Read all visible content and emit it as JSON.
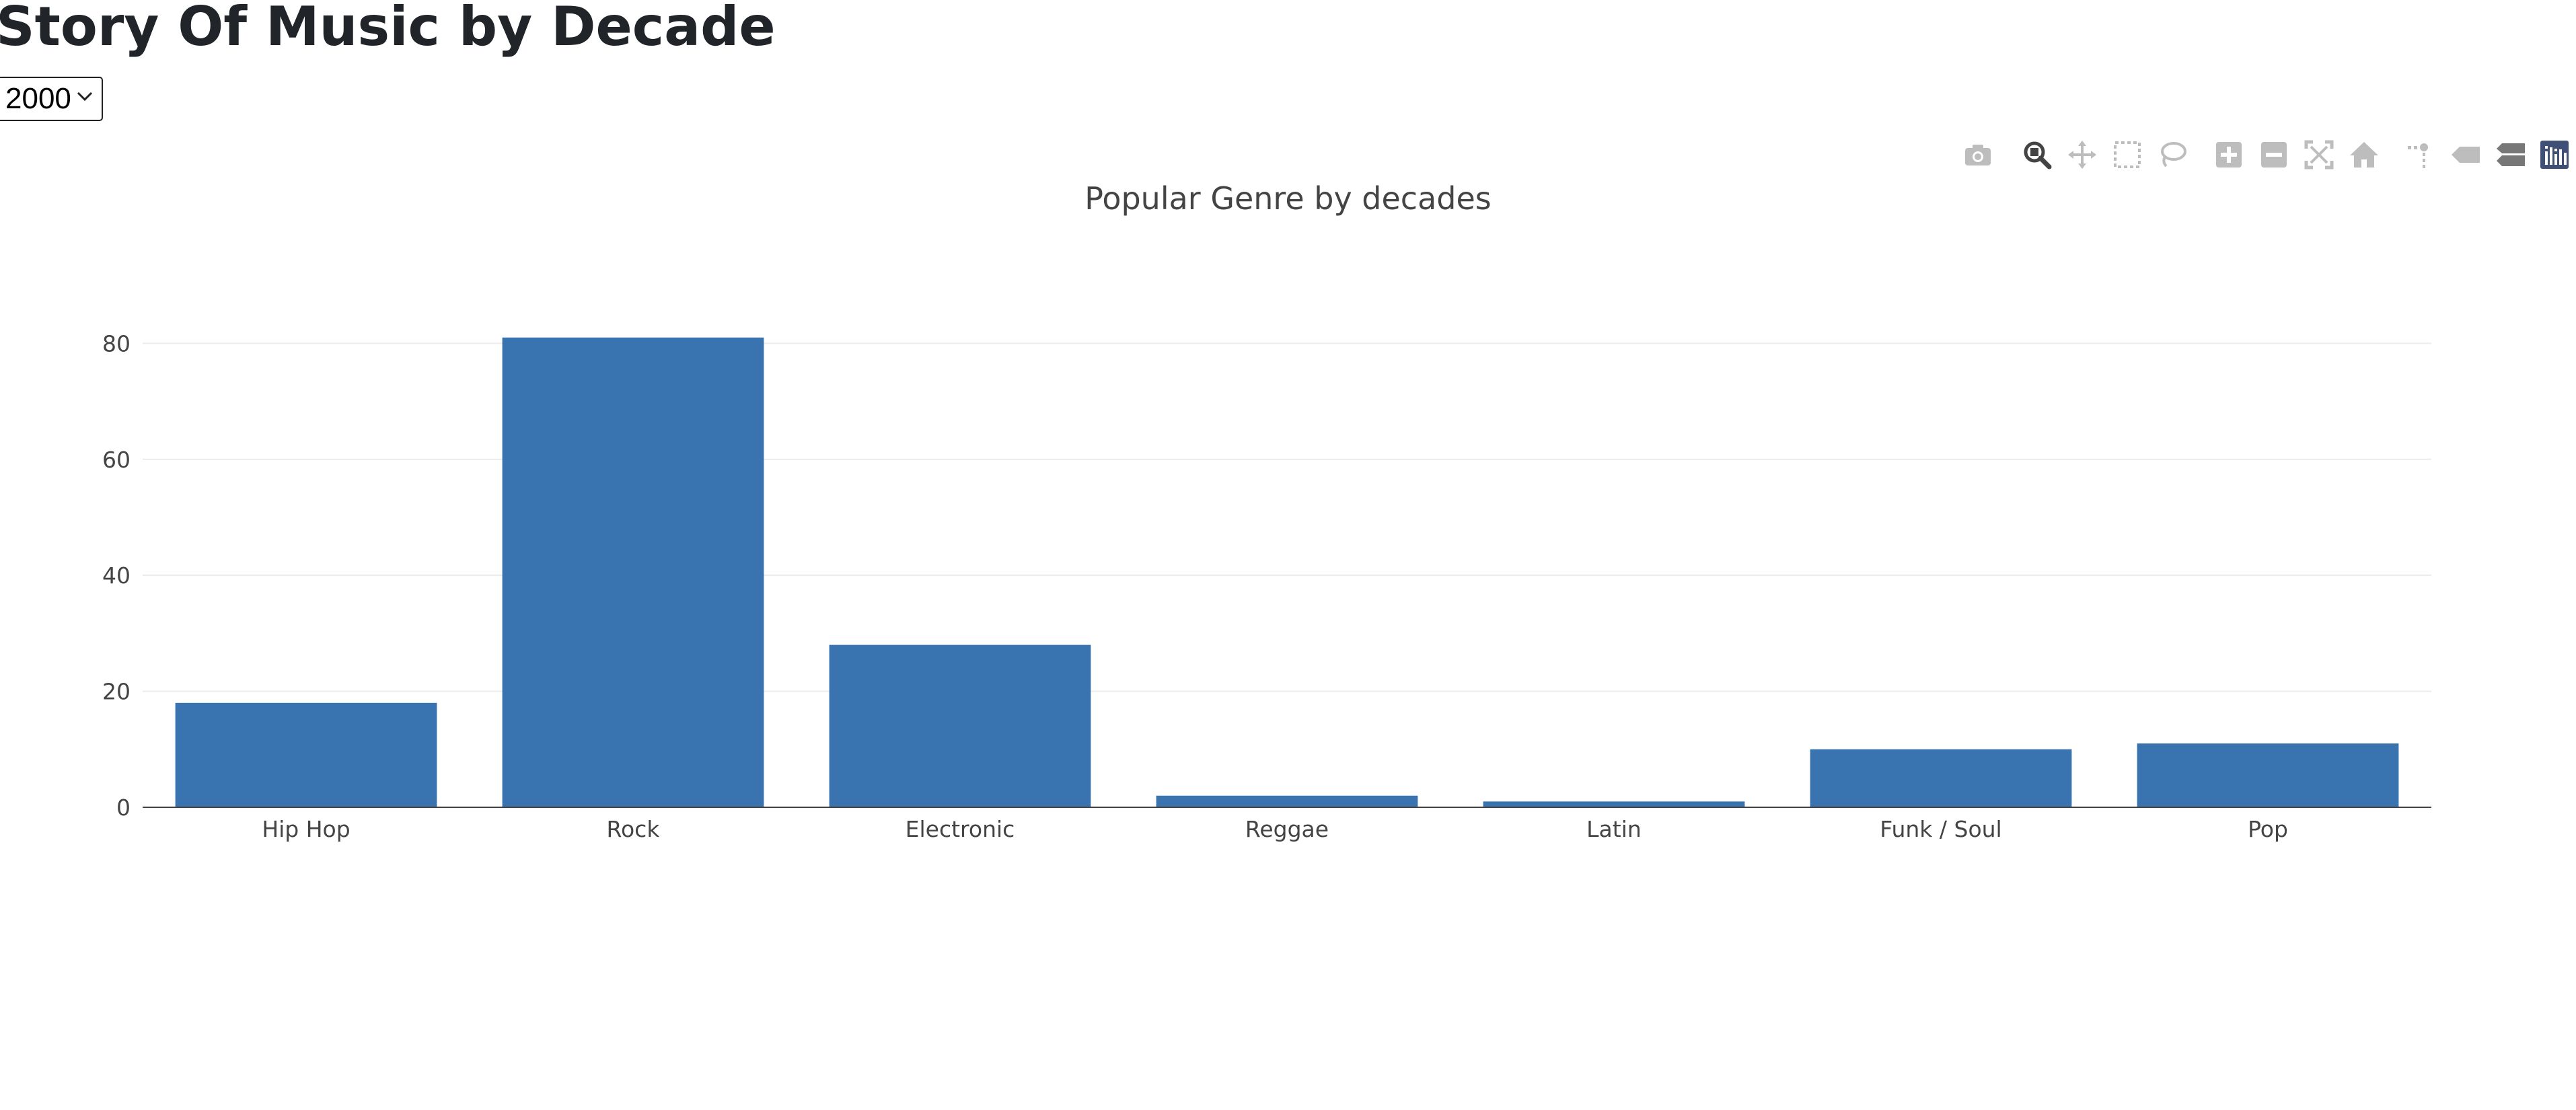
{
  "page": {
    "title": "Story Of Music by Decade"
  },
  "dropdown": {
    "selected": "2000"
  },
  "modebar": {
    "buttons": [
      {
        "icon": "camera-icon",
        "label": "Download plot as a png"
      },
      {
        "icon": "zoom-icon",
        "label": "Zoom"
      },
      {
        "icon": "pan-icon",
        "label": "Pan"
      },
      {
        "icon": "box-select-icon",
        "label": "Box Select"
      },
      {
        "icon": "lasso-select-icon",
        "label": "Lasso Select"
      },
      {
        "icon": "zoom-in-icon",
        "label": "Zoom in"
      },
      {
        "icon": "zoom-out-icon",
        "label": "Zoom out"
      },
      {
        "icon": "autoscale-icon",
        "label": "Autoscale"
      },
      {
        "icon": "reset-axes-icon",
        "label": "Reset axes"
      },
      {
        "icon": "spike-lines-icon",
        "label": "Toggle Spike Lines"
      },
      {
        "icon": "hover-closest-icon",
        "label": "Show closest data on hover"
      },
      {
        "icon": "hover-compare-icon",
        "label": "Compare data on hover"
      },
      {
        "icon": "plotly-logo-icon",
        "label": "Produced with Plotly"
      }
    ],
    "active_icon": "zoom-icon",
    "icon_color": "#bdbdbd",
    "active_color": "#444444",
    "logo_color": "#3f4f75"
  },
  "chart_data": {
    "type": "bar",
    "title": "Popular Genre by decades",
    "xlabel": "",
    "ylabel": "",
    "categories": [
      "Hip Hop",
      "Rock",
      "Electronic",
      "Reggae",
      "Latin",
      "Funk / Soul",
      "Pop"
    ],
    "values": [
      18,
      81,
      28,
      2,
      1,
      10,
      11
    ],
    "ylim": [
      0,
      87
    ],
    "yticks": [
      0,
      20,
      40,
      60,
      80
    ],
    "grid": true,
    "bar_color": "#3a74b0",
    "grid_color": "#ececec",
    "axis_color": "#444444"
  }
}
